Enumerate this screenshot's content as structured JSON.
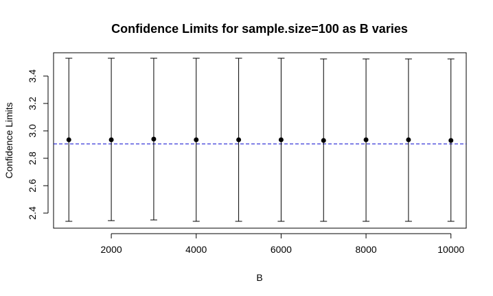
{
  "chart_data": {
    "type": "scatter",
    "title": "Confidence Limits for sample.size=100 as B varies",
    "xlabel": "B",
    "ylabel": "Confidence Limits",
    "xlim": [
      640,
      10360
    ],
    "ylim": [
      2.29,
      3.57
    ],
    "x_ticks": [
      2000,
      4000,
      6000,
      8000,
      10000
    ],
    "x_tick_labels": [
      "2000",
      "4000",
      "6000",
      "8000",
      "10000"
    ],
    "y_ticks": [
      2.4,
      2.6,
      2.8,
      3.0,
      3.2,
      3.4
    ],
    "y_tick_labels": [
      "2.4",
      "2.6",
      "2.8",
      "3.0",
      "3.2",
      "3.4"
    ],
    "grid": false,
    "legend": "none",
    "points": [
      {
        "x": 1000,
        "y": 2.935,
        "lower": 2.34,
        "upper": 3.53
      },
      {
        "x": 2000,
        "y": 2.935,
        "lower": 2.345,
        "upper": 3.53
      },
      {
        "x": 3000,
        "y": 2.94,
        "lower": 2.35,
        "upper": 3.53
      },
      {
        "x": 4000,
        "y": 2.935,
        "lower": 2.34,
        "upper": 3.53
      },
      {
        "x": 5000,
        "y": 2.935,
        "lower": 2.34,
        "upper": 3.53
      },
      {
        "x": 6000,
        "y": 2.935,
        "lower": 2.34,
        "upper": 3.53
      },
      {
        "x": 7000,
        "y": 2.93,
        "lower": 2.34,
        "upper": 3.525
      },
      {
        "x": 8000,
        "y": 2.935,
        "lower": 2.34,
        "upper": 3.525
      },
      {
        "x": 9000,
        "y": 2.935,
        "lower": 2.34,
        "upper": 3.525
      },
      {
        "x": 10000,
        "y": 2.93,
        "lower": 2.34,
        "upper": 3.525
      }
    ],
    "reference_line": {
      "y": 2.905,
      "color": "#0000cc",
      "style": "dashed"
    },
    "colors": {
      "points": "#000000",
      "errorbars": "#000000"
    }
  }
}
